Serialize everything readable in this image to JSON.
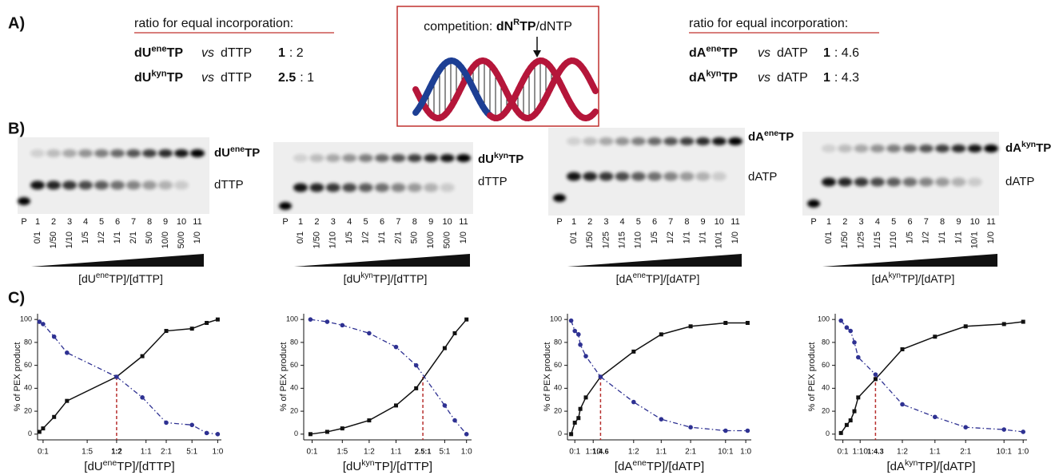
{
  "panels": {
    "a": "A)",
    "b": "B)",
    "c": "C)"
  },
  "ratios_left": {
    "heading": "ratio for equal incorporation:",
    "rows": [
      {
        "name": [
          "dU",
          "ene",
          "TP"
        ],
        "vs": "vs",
        "competitor": "dTTP",
        "ratio_bold": "1",
        "ratio_rest": ": 2"
      },
      {
        "name": [
          "dU",
          "kyn",
          "TP"
        ],
        "vs": "vs",
        "competitor": "dTTP",
        "ratio_bold": "2.5",
        "ratio_rest": ": 1"
      }
    ]
  },
  "competition": {
    "prefix": "competition: ",
    "name": [
      "dN",
      "R",
      "TP"
    ],
    "suffix": "/dNTP"
  },
  "ratios_right": {
    "heading": "ratio for equal incorporation:",
    "rows": [
      {
        "name": [
          "dA",
          "ene",
          "TP"
        ],
        "vs": "vs",
        "competitor": "dATP",
        "ratio_bold": "1",
        "ratio_rest": ": 4.6"
      },
      {
        "name": [
          "dA",
          "kyn",
          "TP"
        ],
        "vs": "vs",
        "competitor": "dATP",
        "ratio_bold": "1",
        "ratio_rest": ": 4.3"
      }
    ]
  },
  "gels": [
    {
      "product": [
        "dU",
        "ene",
        "TP"
      ],
      "control": "dTTP",
      "lanes": [
        "P",
        "1",
        "2",
        "3",
        "4",
        "5",
        "6",
        "7",
        "8",
        "9",
        "10",
        "11"
      ],
      "ratios": [
        "0/1",
        "1/50",
        "1/10",
        "1/5",
        "1/2",
        "1/1",
        "2/1",
        "5/0",
        "10/0",
        "50/0",
        "1/0"
      ],
      "axis_label": [
        "[dU",
        "ene",
        "TP]/[dTTP]"
      ]
    },
    {
      "product": [
        "dU",
        "kyn",
        "TP"
      ],
      "control": "dTTP",
      "lanes": [
        "P",
        "1",
        "2",
        "3",
        "4",
        "5",
        "6",
        "7",
        "8",
        "9",
        "10",
        "11"
      ],
      "ratios": [
        "0/1",
        "1/50",
        "1/10",
        "1/5",
        "1/2",
        "1/1",
        "2/1",
        "5/0",
        "10/0",
        "50/0",
        "1/0"
      ],
      "axis_label": [
        "[dU",
        "kyn",
        "TP]/[dTTP]"
      ]
    },
    {
      "product": [
        "dA",
        "ene",
        "TP"
      ],
      "control": "dATP",
      "lanes": [
        "P",
        "1",
        "2",
        "3",
        "4",
        "5",
        "6",
        "7",
        "8",
        "9",
        "10",
        "11"
      ],
      "ratios": [
        "0/1",
        "1/50",
        "1/25",
        "1/15",
        "1/10",
        "1/5",
        "1/2",
        "1/1",
        "1/1",
        "10/1",
        "1/0"
      ],
      "axis_label": [
        "[dA",
        "ene",
        "TP]/[dATP]"
      ]
    },
    {
      "product": [
        "dA",
        "kyn",
        "TP"
      ],
      "control": "dATP",
      "lanes": [
        "P",
        "1",
        "2",
        "3",
        "4",
        "5",
        "6",
        "7",
        "8",
        "9",
        "10",
        "11"
      ],
      "ratios": [
        "0/1",
        "1/50",
        "1/25",
        "1/15",
        "1/10",
        "1/5",
        "1/2",
        "1/1",
        "1/1",
        "10/1",
        "1/0"
      ],
      "axis_label": [
        "[dA",
        "kyn",
        "TP]/[dATP]"
      ]
    }
  ],
  "chart_data": [
    {
      "type": "line",
      "ylabel": "% of PEX product",
      "xlabel": [
        "[dU",
        "ene",
        "TP]/[dTTP]"
      ],
      "xlim": [
        0,
        10
      ],
      "ylim": [
        -5,
        105
      ],
      "yticks": [
        0,
        20,
        40,
        60,
        80,
        100
      ],
      "xticks": [
        {
          "value": 0.3,
          "label": "0:1"
        },
        {
          "value": 2.7,
          "label": "1:5"
        },
        {
          "value": 4.3,
          "label": "1:2"
        },
        {
          "value": 5.9,
          "label": "1:1"
        },
        {
          "value": 7.0,
          "label": "2:1"
        },
        {
          "value": 8.4,
          "label": "5:1"
        },
        {
          "value": 9.8,
          "label": "1:0"
        }
      ],
      "x": [
        0.1,
        0.3,
        0.9,
        1.6,
        4.3,
        5.7,
        7.0,
        8.4,
        9.2,
        9.8
      ],
      "series": [
        {
          "color": "#111111",
          "marker": "square",
          "dash": false,
          "values": [
            2,
            5,
            15,
            29,
            50,
            68,
            90,
            92,
            97,
            100
          ]
        },
        {
          "color": "#2e3192",
          "marker": "circle",
          "dash": true,
          "values": [
            98,
            96,
            85,
            71,
            50,
            32,
            10,
            8,
            1,
            0
          ]
        }
      ],
      "annotation": {
        "x": 4.3,
        "y": 50,
        "label": "1:2",
        "color": "#b8312f"
      }
    },
    {
      "type": "line",
      "ylabel": "% of PEX product",
      "xlabel": [
        "[dU",
        "kyn",
        "TP]/[dTTP]"
      ],
      "xlim": [
        0,
        10
      ],
      "ylim": [
        -5,
        105
      ],
      "yticks": [
        0,
        20,
        40,
        60,
        80,
        100
      ],
      "xticks": [
        {
          "value": 0.5,
          "label": "0:1"
        },
        {
          "value": 2.3,
          "label": "1:5"
        },
        {
          "value": 3.9,
          "label": "1:2"
        },
        {
          "value": 5.5,
          "label": "1:1"
        },
        {
          "value": 8.4,
          "label": "5:1"
        },
        {
          "value": 9.7,
          "label": "1:0"
        }
      ],
      "x": [
        0.4,
        1.4,
        2.3,
        3.9,
        5.5,
        6.7,
        8.4,
        9.0,
        9.7
      ],
      "series": [
        {
          "color": "#111111",
          "marker": "square",
          "dash": false,
          "values": [
            0,
            2,
            5,
            12,
            25,
            40,
            75,
            88,
            100
          ]
        },
        {
          "color": "#2e3192",
          "marker": "circle",
          "dash": true,
          "values": [
            100,
            98,
            95,
            88,
            76,
            60,
            25,
            12,
            0
          ]
        }
      ],
      "annotation": {
        "x": 7.1,
        "y": 50,
        "label": "2.5:1",
        "color": "#b8312f"
      }
    },
    {
      "type": "line",
      "ylabel": "% of PEX product",
      "xlabel": [
        "[dA",
        "ene",
        "TP]/[dATP]"
      ],
      "xlim": [
        0,
        10
      ],
      "ylim": [
        -5,
        105
      ],
      "yticks": [
        0,
        20,
        40,
        60,
        80,
        100
      ],
      "xticks": [
        {
          "value": 0.4,
          "label": "0:1"
        },
        {
          "value": 1.4,
          "label": "1:10"
        },
        {
          "value": 3.6,
          "label": "1:2"
        },
        {
          "value": 5.1,
          "label": "1:1"
        },
        {
          "value": 6.7,
          "label": "2:1"
        },
        {
          "value": 8.6,
          "label": "10:1"
        },
        {
          "value": 9.7,
          "label": "1:0"
        }
      ],
      "x": [
        0.2,
        0.4,
        0.6,
        0.7,
        1.0,
        1.8,
        3.6,
        5.1,
        6.7,
        8.6,
        9.8
      ],
      "series": [
        {
          "color": "#111111",
          "marker": "square",
          "dash": false,
          "values": [
            0,
            10,
            14,
            22,
            32,
            50,
            72,
            87,
            94,
            97,
            97
          ]
        },
        {
          "color": "#2e3192",
          "marker": "circle",
          "dash": true,
          "values": [
            99,
            90,
            87,
            78,
            68,
            50,
            28,
            13,
            6,
            3,
            3
          ]
        }
      ],
      "annotation": {
        "x": 1.8,
        "y": 50,
        "label": "1:4.6",
        "color": "#b8312f"
      }
    },
    {
      "type": "line",
      "ylabel": "% of PEX product",
      "xlabel": [
        "[dA",
        "kyn",
        "TP]/[dATP]"
      ],
      "xlim": [
        0,
        10
      ],
      "ylim": [
        -5,
        105
      ],
      "yticks": [
        0,
        20,
        40,
        60,
        80,
        100
      ],
      "xticks": [
        {
          "value": 0.4,
          "label": "0:1"
        },
        {
          "value": 1.3,
          "label": "1:10"
        },
        {
          "value": 3.5,
          "label": "1:2"
        },
        {
          "value": 5.2,
          "label": "1:1"
        },
        {
          "value": 6.8,
          "label": "2:1"
        },
        {
          "value": 8.8,
          "label": "10:1"
        },
        {
          "value": 9.8,
          "label": "1:0"
        }
      ],
      "x": [
        0.3,
        0.6,
        0.8,
        1.0,
        1.2,
        2.1,
        3.5,
        5.2,
        6.8,
        8.8,
        9.8
      ],
      "series": [
        {
          "color": "#111111",
          "marker": "square",
          "dash": false,
          "values": [
            1,
            8,
            12,
            20,
            32,
            48,
            74,
            85,
            94,
            96,
            98
          ]
        },
        {
          "color": "#2e3192",
          "marker": "circle",
          "dash": true,
          "values": [
            99,
            93,
            90,
            80,
            67,
            52,
            26,
            15,
            6,
            4,
            2
          ]
        }
      ],
      "annotation": {
        "x": 2.1,
        "y": 50,
        "label": "1:4.3",
        "color": "#b8312f"
      }
    }
  ]
}
